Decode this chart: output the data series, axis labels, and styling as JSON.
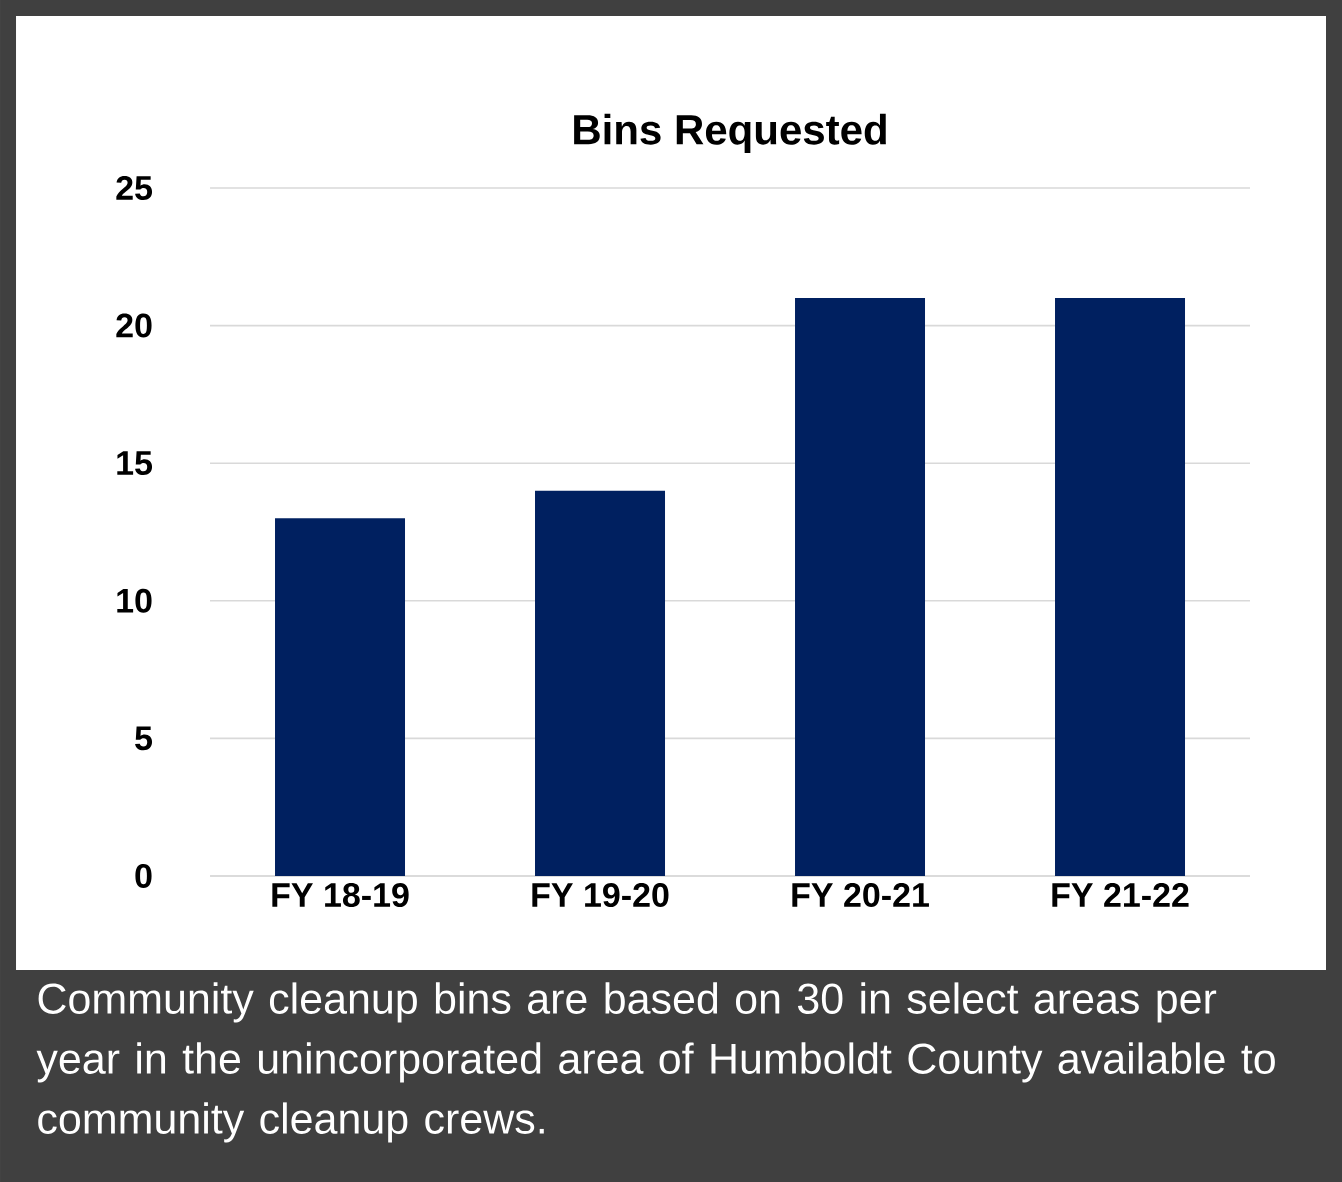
{
  "chart_data": {
    "type": "bar",
    "title": "Bins Requested",
    "categories": [
      "FY 18-19",
      "FY 19-20",
      "FY 20-21",
      "FY 21-22"
    ],
    "values": [
      13,
      14,
      21,
      21
    ],
    "color": "#002060",
    "ylim": [
      0,
      25
    ],
    "yticks": [
      0,
      5,
      10,
      15,
      20,
      25
    ],
    "grid": "y",
    "annotations": [
      "Community cleanup bins are based on 30 in select areas per year in the unincorporated area of Humboldt County available to community cleanup crews."
    ]
  }
}
